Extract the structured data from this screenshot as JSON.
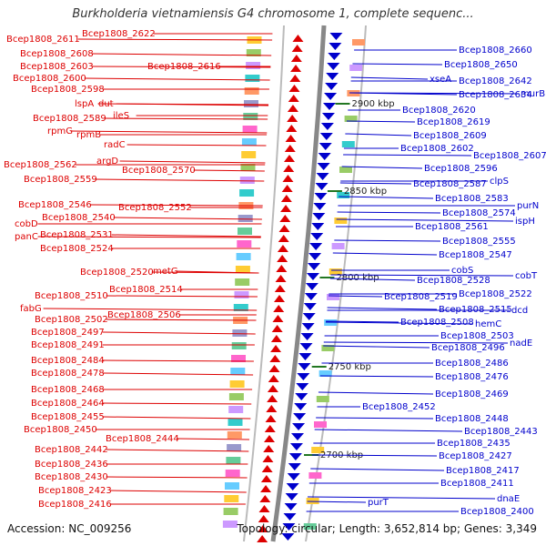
{
  "title": "Burkholderia vietnamiensis G4 chromosome 1, complete sequenc...",
  "footer": {
    "accession": "Accession: NC_009256",
    "summary": "Topology: circular; Length: 3,652,814 bp; Genes: 3,349"
  },
  "colors": {
    "forward": "#dd0000",
    "reverse": "#0000cc",
    "backbone": "#888888",
    "tick": "#227722"
  },
  "kbp_ticks": [
    {
      "label": "2900 kbp"
    },
    {
      "label": "2850 kbp"
    },
    {
      "label": "2800 kbp"
    },
    {
      "label": "2750 kbp"
    },
    {
      "label": "2700 kbp"
    }
  ],
  "left_labels": [
    {
      "text": "Bcep1808_2622"
    },
    {
      "text": "Bcep1808_2611"
    },
    {
      "text": "Bcep1808_2608"
    },
    {
      "text": "Bcep1808_2616"
    },
    {
      "text": "Bcep1808_2603"
    },
    {
      "text": "Bcep1808_2600"
    },
    {
      "text": "Bcep1808_2598"
    },
    {
      "text": "lspA"
    },
    {
      "text": "dut"
    },
    {
      "text": "ileS"
    },
    {
      "text": "Bcep1808_2589"
    },
    {
      "text": "rpmG"
    },
    {
      "text": "rpmB"
    },
    {
      "text": "radC"
    },
    {
      "text": "argD"
    },
    {
      "text": "Bcep1808_2562"
    },
    {
      "text": "Bcep1808_2570"
    },
    {
      "text": "Bcep1808_2559"
    },
    {
      "text": "Bcep1808_2552"
    },
    {
      "text": "Bcep1808_2546"
    },
    {
      "text": "Bcep1808_2540"
    },
    {
      "text": "cobD"
    },
    {
      "text": "panC"
    },
    {
      "text": "Bcep1808_2531"
    },
    {
      "text": "Bcep1808_2524"
    },
    {
      "text": "Bcep1808_2520"
    },
    {
      "text": "metG"
    },
    {
      "text": "Bcep1808_2514"
    },
    {
      "text": "Bcep1808_2510"
    },
    {
      "text": "fabG"
    },
    {
      "text": "Bcep1808_2506"
    },
    {
      "text": "Bcep1808_2502"
    },
    {
      "text": "Bcep1808_2497"
    },
    {
      "text": "Bcep1808_2491"
    },
    {
      "text": "Bcep1808_2484"
    },
    {
      "text": "Bcep1808_2478"
    },
    {
      "text": "Bcep1808_2468"
    },
    {
      "text": "Bcep1808_2464"
    },
    {
      "text": "Bcep1808_2455"
    },
    {
      "text": "Bcep1808_2450"
    },
    {
      "text": "Bcep1808_2444"
    },
    {
      "text": "Bcep1808_2442"
    },
    {
      "text": "Bcep1808_2436"
    },
    {
      "text": "Bcep1808_2430"
    },
    {
      "text": "Bcep1808_2423"
    },
    {
      "text": "Bcep1808_2416"
    }
  ],
  "right_labels": [
    {
      "text": "Bcep1808_2660"
    },
    {
      "text": "Bcep1808_2650"
    },
    {
      "text": "xseA"
    },
    {
      "text": "Bcep1808_2642"
    },
    {
      "text": "murB"
    },
    {
      "text": "Bcep1808_2634"
    },
    {
      "text": "Bcep1808_2620"
    },
    {
      "text": "Bcep1808_2619"
    },
    {
      "text": "Bcep1808_2609"
    },
    {
      "text": "Bcep1808_2602"
    },
    {
      "text": "Bcep1808_2607"
    },
    {
      "text": "Bcep1808_2596"
    },
    {
      "text": "clpS"
    },
    {
      "text": "Bcep1808_2587"
    },
    {
      "text": "Bcep1808_2583"
    },
    {
      "text": "purN"
    },
    {
      "text": "Bcep1808_2574"
    },
    {
      "text": "ispH"
    },
    {
      "text": "Bcep1808_2561"
    },
    {
      "text": "Bcep1808_2555"
    },
    {
      "text": "Bcep1808_2547"
    },
    {
      "text": "cobS"
    },
    {
      "text": "cobT"
    },
    {
      "text": "Bcep1808_2528"
    },
    {
      "text": "Bcep1808_2522"
    },
    {
      "text": "Bcep1808_2519"
    },
    {
      "text": "Bcep1808_2515"
    },
    {
      "text": "dcd"
    },
    {
      "text": "Bcep1808_2508"
    },
    {
      "text": "hemC"
    },
    {
      "text": "Bcep1808_2503"
    },
    {
      "text": "nadE"
    },
    {
      "text": "Bcep1808_2496"
    },
    {
      "text": "Bcep1808_2486"
    },
    {
      "text": "Bcep1808_2476"
    },
    {
      "text": "Bcep1808_2469"
    },
    {
      "text": "Bcep1808_2452"
    },
    {
      "text": "Bcep1808_2448"
    },
    {
      "text": "Bcep1808_2443"
    },
    {
      "text": "Bcep1808_2435"
    },
    {
      "text": "Bcep1808_2427"
    },
    {
      "text": "Bcep1808_2417"
    },
    {
      "text": "Bcep1808_2411"
    },
    {
      "text": "purT"
    },
    {
      "text": "dnaE"
    },
    {
      "text": "Bcep1808_2400"
    }
  ]
}
